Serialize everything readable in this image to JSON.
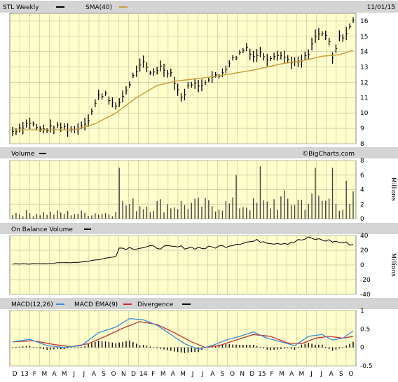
{
  "header": {
    "symbol_label": "STL Weekly",
    "sma_label": "SMA(40)",
    "date_label": "11/01/15"
  },
  "watermark": "©BigCharts.com",
  "colors": {
    "background": "#ffffff",
    "panel_bg": "#ffffcc",
    "grid": "#c8c8a0",
    "bar_header": "#d4d4d4",
    "price": "#000000",
    "sma": "#c8a040",
    "macd": "#3a8fd8",
    "macd_ema": "#c83030",
    "divergence": "#000000"
  },
  "chart_data": [
    {
      "type": "line",
      "title": "STL Weekly",
      "legend": [
        "STL Weekly",
        "SMA(40)"
      ],
      "y_ticks": [
        8,
        9,
        10,
        11,
        12,
        13,
        14,
        15,
        16
      ],
      "ylim": [
        8,
        16.5
      ],
      "weeks": 100,
      "series": [
        {
          "name": "STL Weekly",
          "anchors": [
            [
              0,
              8.8
            ],
            [
              5,
              9.4
            ],
            [
              8,
              8.9
            ],
            [
              14,
              9.1
            ],
            [
              18,
              8.9
            ],
            [
              22,
              9.6
            ],
            [
              25,
              11.1
            ],
            [
              27,
              11.3
            ],
            [
              30,
              10.3
            ],
            [
              33,
              11.5
            ],
            [
              36,
              12.8
            ],
            [
              38,
              13.2
            ],
            [
              40,
              12.6
            ],
            [
              43,
              13.0
            ],
            [
              46,
              12.6
            ],
            [
              49,
              11.0
            ],
            [
              52,
              12.0
            ],
            [
              54,
              11.7
            ],
            [
              57,
              12.3
            ],
            [
              60,
              12.4
            ],
            [
              63,
              13.3
            ],
            [
              66,
              13.9
            ],
            [
              68,
              14.3
            ],
            [
              70,
              13.7
            ],
            [
              72,
              13.9
            ],
            [
              74,
              13.6
            ],
            [
              77,
              13.9
            ],
            [
              80,
              13.5
            ],
            [
              83,
              13.2
            ],
            [
              86,
              13.8
            ],
            [
              88,
              15.0
            ],
            [
              90,
              15.2
            ],
            [
              92,
              14.6
            ],
            [
              93,
              13.5
            ],
            [
              95,
              14.9
            ],
            [
              97,
              15.2
            ],
            [
              99,
              16.0
            ]
          ]
        },
        {
          "name": "SMA(40)",
          "anchors": [
            [
              0,
              8.9
            ],
            [
              10,
              8.9
            ],
            [
              18,
              8.9
            ],
            [
              24,
              9.3
            ],
            [
              30,
              10.0
            ],
            [
              36,
              11.0
            ],
            [
              42,
              11.8
            ],
            [
              48,
              12.1
            ],
            [
              56,
              12.3
            ],
            [
              62,
              12.5
            ],
            [
              70,
              12.8
            ],
            [
              78,
              13.2
            ],
            [
              84,
              13.4
            ],
            [
              90,
              13.7
            ],
            [
              95,
              13.8
            ],
            [
              99,
              14.1
            ]
          ]
        }
      ]
    },
    {
      "type": "bar",
      "title": "Volume",
      "ylabel": "Millions",
      "y_ticks": [
        0,
        2,
        4,
        6,
        8
      ],
      "ylim": [
        0,
        8
      ],
      "spikes": [
        [
          31,
          7.0
        ],
        [
          65,
          6.0
        ],
        [
          72,
          7.2
        ],
        [
          88,
          7.0
        ],
        [
          93,
          7.0
        ],
        [
          97,
          5.2
        ]
      ]
    },
    {
      "type": "line",
      "title": "On Balance Volume",
      "ylabel": "Millions",
      "y_ticks": [
        -40,
        -20,
        0,
        20,
        40
      ],
      "ylim": [
        -40,
        40
      ],
      "series": [
        {
          "name": "On Balance Volume",
          "anchors": [
            [
              0,
              1
            ],
            [
              10,
              2
            ],
            [
              20,
              4
            ],
            [
              26,
              8
            ],
            [
              30,
              12
            ],
            [
              31,
              23
            ],
            [
              40,
              24
            ],
            [
              50,
              24
            ],
            [
              56,
              23
            ],
            [
              62,
              26
            ],
            [
              66,
              30
            ],
            [
              72,
              33
            ],
            [
              76,
              30
            ],
            [
              80,
              30
            ],
            [
              86,
              36
            ],
            [
              92,
              33
            ],
            [
              99,
              28
            ]
          ]
        }
      ]
    },
    {
      "type": "line",
      "title": "MACD",
      "legend": [
        "MACD(12,26)",
        "MACD EMA(9)",
        "Divergence"
      ],
      "y_ticks": [
        -0.5,
        0,
        0.5,
        1.0
      ],
      "ylim": [
        -0.5,
        1.0
      ],
      "series": [
        {
          "name": "MACD(12,26)",
          "anchors": [
            [
              0,
              0.15
            ],
            [
              5,
              0.22
            ],
            [
              10,
              0.05
            ],
            [
              15,
              0.0
            ],
            [
              20,
              0.05
            ],
            [
              25,
              0.4
            ],
            [
              30,
              0.55
            ],
            [
              34,
              0.78
            ],
            [
              38,
              0.75
            ],
            [
              42,
              0.6
            ],
            [
              46,
              0.35
            ],
            [
              50,
              0.1
            ],
            [
              54,
              -0.05
            ],
            [
              58,
              0.05
            ],
            [
              62,
              0.2
            ],
            [
              66,
              0.3
            ],
            [
              70,
              0.42
            ],
            [
              74,
              0.25
            ],
            [
              78,
              0.15
            ],
            [
              82,
              0.05
            ],
            [
              86,
              0.3
            ],
            [
              90,
              0.35
            ],
            [
              93,
              0.2
            ],
            [
              96,
              0.25
            ],
            [
              99,
              0.45
            ]
          ]
        },
        {
          "name": "MACD EMA(9)",
          "anchors": [
            [
              0,
              0.15
            ],
            [
              6,
              0.18
            ],
            [
              12,
              0.08
            ],
            [
              17,
              0.02
            ],
            [
              22,
              0.1
            ],
            [
              27,
              0.3
            ],
            [
              32,
              0.52
            ],
            [
              37,
              0.7
            ],
            [
              42,
              0.62
            ],
            [
              47,
              0.4
            ],
            [
              52,
              0.15
            ],
            [
              56,
              0.0
            ],
            [
              60,
              0.05
            ],
            [
              65,
              0.2
            ],
            [
              70,
              0.35
            ],
            [
              75,
              0.3
            ],
            [
              80,
              0.12
            ],
            [
              84,
              0.1
            ],
            [
              88,
              0.25
            ],
            [
              92,
              0.3
            ],
            [
              96,
              0.25
            ],
            [
              99,
              0.3
            ]
          ]
        }
      ]
    }
  ],
  "x_axis": {
    "labels": [
      "D",
      "13",
      "F",
      "M",
      "A",
      "M",
      "J",
      "J",
      "A",
      "S",
      "O",
      "N",
      "D",
      "14",
      "F",
      "M",
      "A",
      "M",
      "J",
      "J",
      "A",
      "S",
      "O",
      "N",
      "D",
      "15",
      "F",
      "M",
      "A",
      "M",
      "J",
      "J",
      "A",
      "S",
      "O"
    ]
  },
  "panels": {
    "volume_label": "Volume",
    "obv_label": "On Balance Volume",
    "macd_label": "MACD(12,26)",
    "macd_ema_label": "MACD EMA(9)",
    "divergence_label": "Divergence",
    "millions_label": "Millions"
  }
}
